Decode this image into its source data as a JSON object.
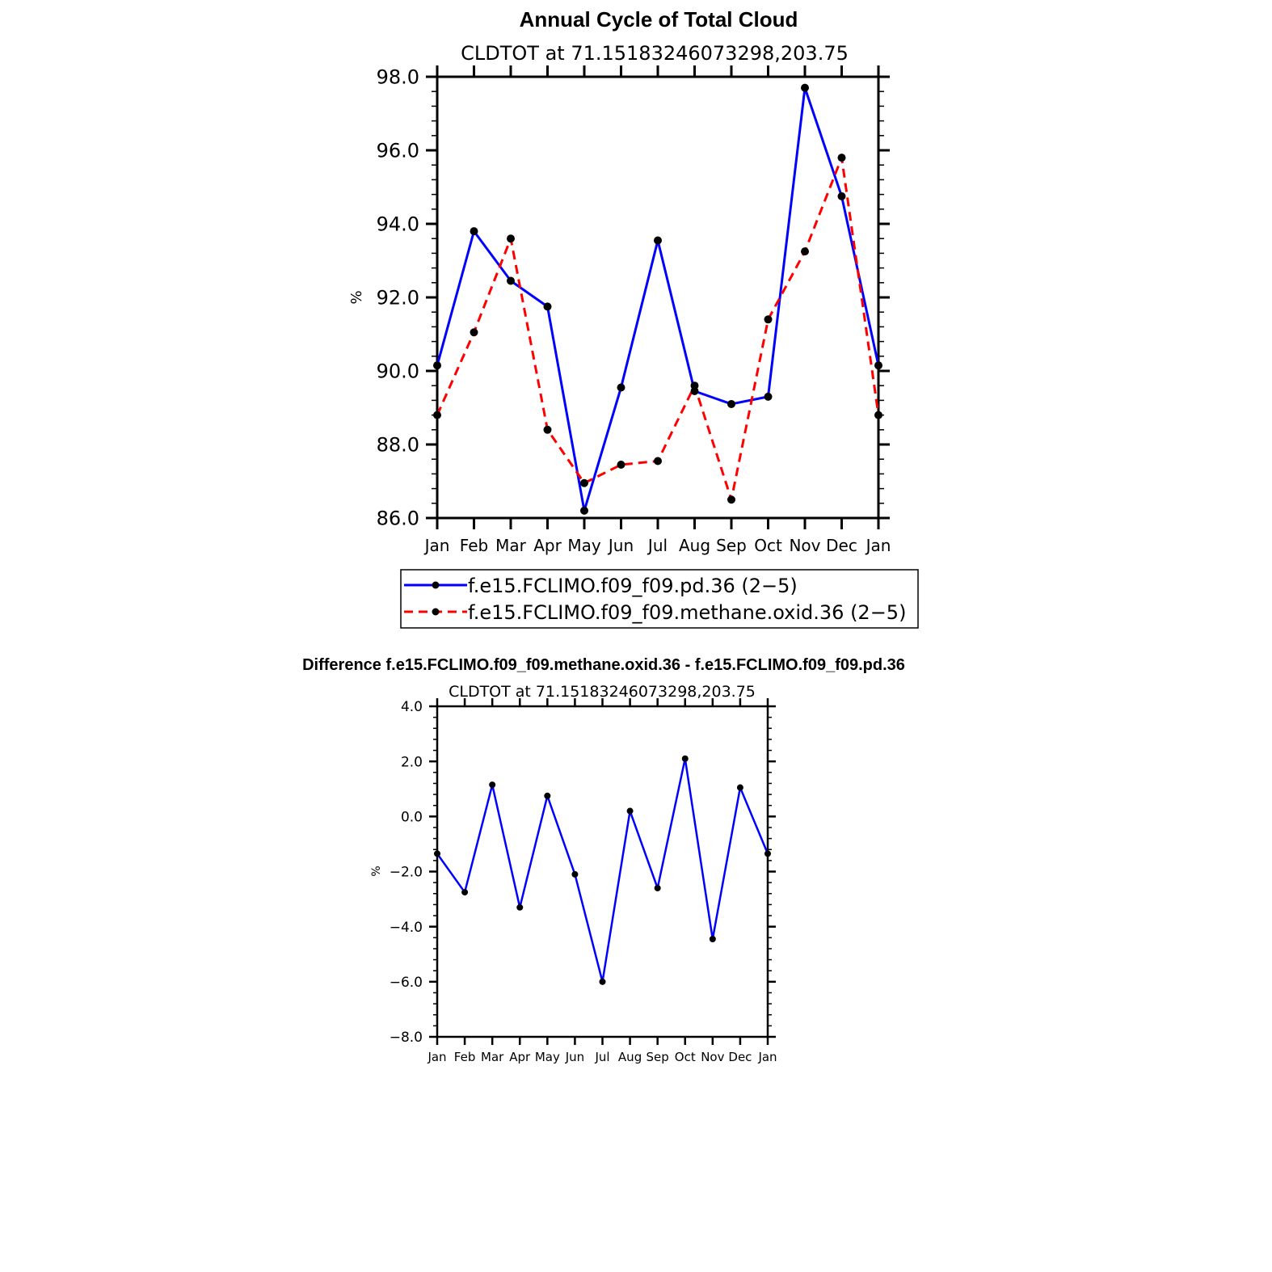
{
  "chart_data": [
    {
      "type": "line",
      "title": "Annual Cycle of Total Cloud",
      "subtitle": "CLDTOT at 71.15183246073298,203.75",
      "xlabel": "",
      "ylabel": "%",
      "categories": [
        "Jan",
        "Feb",
        "Mar",
        "Apr",
        "May",
        "Jun",
        "Jul",
        "Aug",
        "Sep",
        "Oct",
        "Nov",
        "Dec",
        "Jan"
      ],
      "ylim": [
        86.0,
        98.0
      ],
      "yticks": [
        "86.0",
        "88.0",
        "90.0",
        "92.0",
        "94.0",
        "96.0",
        "98.0"
      ],
      "grid": false,
      "legend": "bottom",
      "series": [
        {
          "name": "f.e15.FCLIMO.f09_f09.pd.36 (2−5)",
          "color": "#0000ff",
          "dash": "solid",
          "values": [
            90.15,
            93.8,
            92.45,
            91.75,
            86.2,
            89.55,
            93.55,
            89.45,
            89.1,
            89.3,
            97.7,
            94.75,
            90.15
          ]
        },
        {
          "name": "f.e15.FCLIMO.f09_f09.methane.oxid.36 (2−5)",
          "color": "#ff0000",
          "dash": "dashed",
          "values": [
            88.8,
            91.05,
            93.6,
            88.4,
            86.95,
            87.45,
            87.55,
            89.6,
            86.5,
            91.4,
            93.25,
            95.8,
            88.8
          ]
        }
      ]
    },
    {
      "type": "line",
      "title": "Difference f.e15.FCLIMO.f09_f09.methane.oxid.36 - f.e15.FCLIMO.f09_f09.pd.36",
      "subtitle": "CLDTOT at 71.15183246073298,203.75",
      "xlabel": "",
      "ylabel": "%",
      "categories": [
        "Jan",
        "Feb",
        "Mar",
        "Apr",
        "May",
        "Jun",
        "Jul",
        "Aug",
        "Sep",
        "Oct",
        "Nov",
        "Dec",
        "Jan"
      ],
      "ylim": [
        -8.0,
        4.0
      ],
      "yticks": [
        "−8.0",
        "−6.0",
        "−4.0",
        "−2.0",
        "0.0",
        "2.0",
        "4.0"
      ],
      "grid": false,
      "series": [
        {
          "color": "#0000ff",
          "dash": "solid",
          "values": [
            -1.35,
            -2.75,
            1.15,
            -3.3,
            0.75,
            -2.1,
            -6.0,
            0.2,
            -2.6,
            2.1,
            -4.45,
            1.05,
            -1.35
          ]
        }
      ]
    }
  ]
}
